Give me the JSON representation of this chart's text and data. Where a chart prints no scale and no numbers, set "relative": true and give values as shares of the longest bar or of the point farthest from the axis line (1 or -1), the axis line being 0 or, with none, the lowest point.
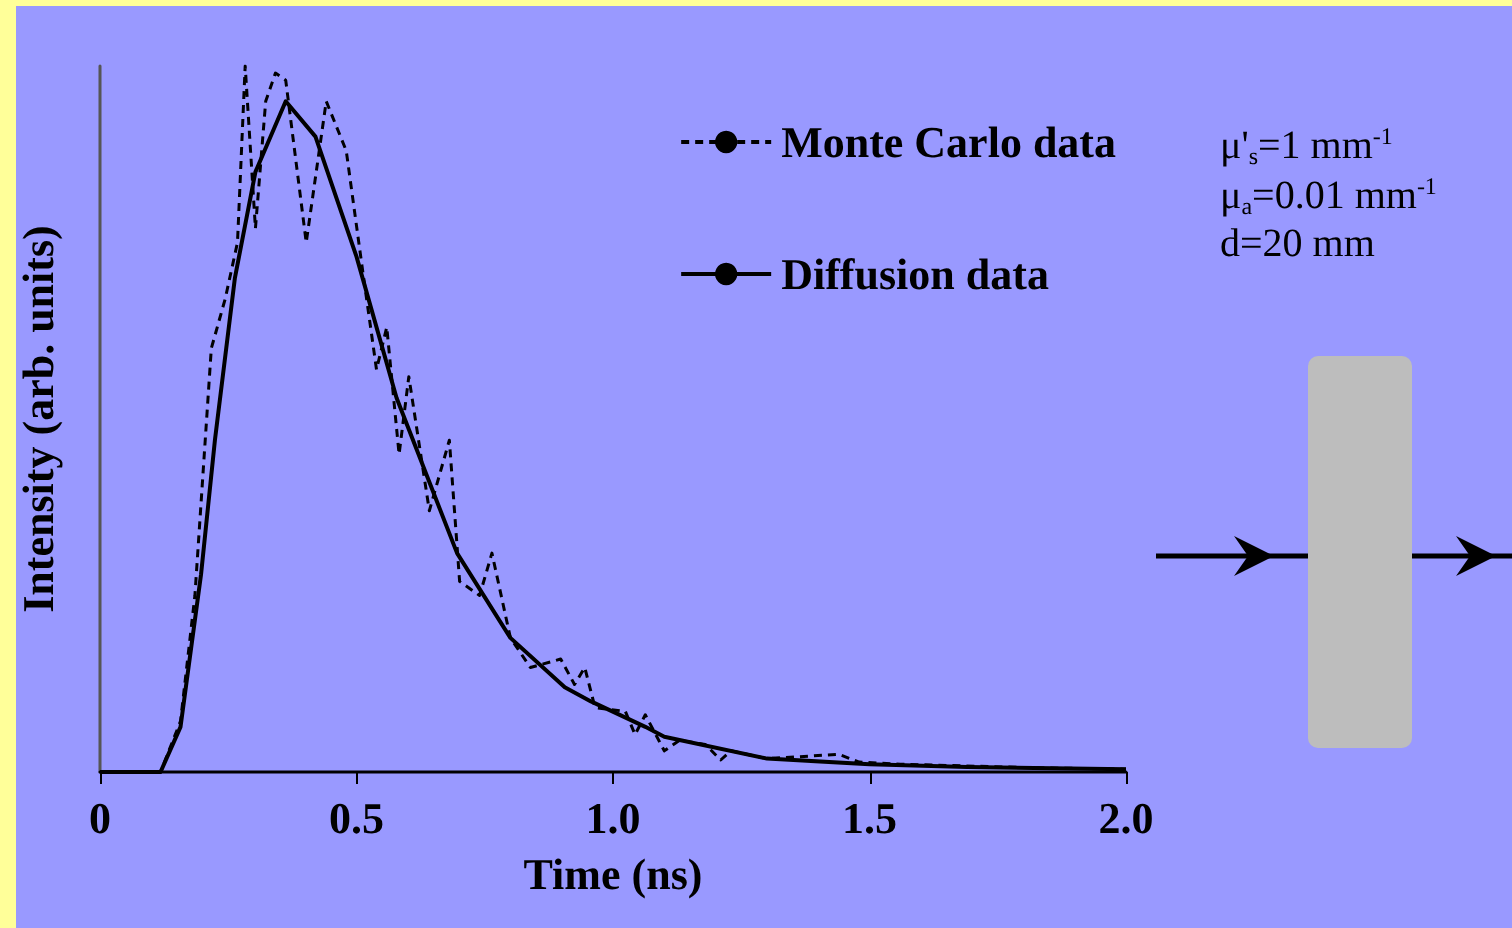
{
  "chart_data": {
    "type": "line",
    "relative": true,
    "xlabel": "Time (ns)",
    "ylabel": "Intensity (arb. units)",
    "xlim": [
      0,
      2
    ],
    "xticks": [
      0,
      0.5,
      {
        "value": 1,
        "label": "1.0"
      },
      1.5,
      {
        "value": 2,
        "label": "2.0"
      }
    ],
    "legend": "top right",
    "grid": false,
    "annotations": [
      "μ'$_{s}$=1 mm$^{-1}$",
      "μ$_{a}$=0.01 mm$^{-1}$",
      "d=20 mm"
    ],
    "series": [
      {
        "name": "Monte Carlo data",
        "color": "#000000",
        "line_style": "dashed",
        "x": [
          0,
          0.118,
          0.157,
          0.185,
          0.217,
          0.244,
          0.268,
          0.283,
          0.303,
          0.323,
          0.342,
          0.362,
          0.402,
          0.441,
          0.48,
          0.512,
          0.539,
          0.559,
          0.583,
          0.602,
          0.642,
          0.681,
          0.701,
          0.74,
          0.764,
          0.8,
          0.839,
          0.898,
          0.925,
          0.945,
          0.965,
          1.024,
          1.043,
          1.063,
          1.1,
          1.13,
          1.18,
          1.21,
          1.23,
          1.3,
          1.44,
          1.48,
          1.56,
          1.82,
          2.0
        ],
        "values": [
          0,
          0,
          0.072,
          0.25,
          0.6,
          0.67,
          0.75,
          1.0,
          0.77,
          0.95,
          0.99,
          0.98,
          0.75,
          0.95,
          0.88,
          0.71,
          0.57,
          0.63,
          0.45,
          0.56,
          0.37,
          0.47,
          0.27,
          0.25,
          0.31,
          0.19,
          0.148,
          0.16,
          0.124,
          0.148,
          0.091,
          0.086,
          0.053,
          0.081,
          0.03,
          0.045,
          0.039,
          0.017,
          0.03,
          0.019,
          0.025,
          0.014,
          0.011,
          0.006,
          0.004
        ]
      },
      {
        "name": "Diffusion data",
        "color": "#000000",
        "line_style": "solid",
        "x": [
          0,
          0.118,
          0.157,
          0.197,
          0.224,
          0.263,
          0.303,
          0.362,
          0.42,
          0.5,
          0.578,
          0.696,
          0.8,
          0.906,
          0.957,
          1.063,
          1.1,
          1.3,
          1.5,
          1.69,
          2.0
        ],
        "values": [
          0,
          0,
          0.064,
          0.28,
          0.47,
          0.7,
          0.85,
          0.95,
          0.9,
          0.73,
          0.53,
          0.31,
          0.19,
          0.12,
          0.1,
          0.064,
          0.05,
          0.019,
          0.011,
          0.007,
          0.004
        ]
      }
    ]
  }
}
